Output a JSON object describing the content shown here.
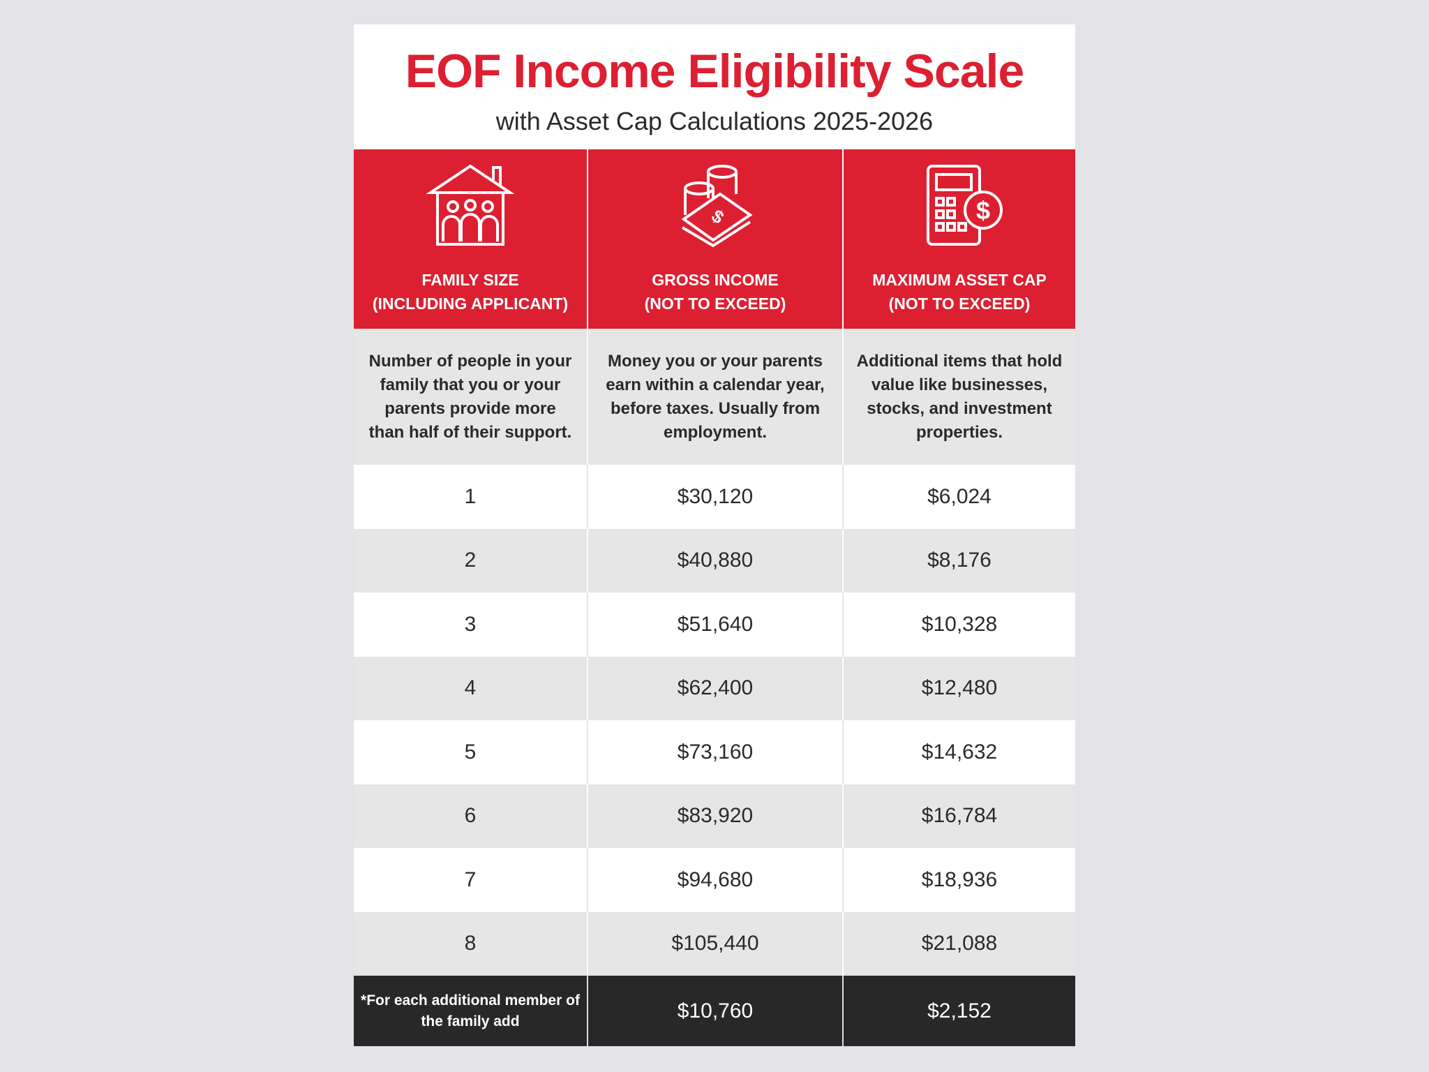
{
  "title": "EOF Income Eligibility Scale",
  "subtitle": "with Asset Cap Calculations 2025-2026",
  "columns": [
    {
      "icon": "house-family-icon",
      "heading1": "FAMILY SIZE",
      "heading2": "(INCLUDING APPLICANT)",
      "description": "Number of people in your family that you or your parents provide more than half of their support."
    },
    {
      "icon": "money-coins-icon",
      "heading1": "GROSS INCOME",
      "heading2": "(NOT TO EXCEED)",
      "description": "Money you or your parents earn within a calendar year, before taxes. Usually from employment."
    },
    {
      "icon": "calculator-dollar-icon",
      "heading1": "MAXIMUM ASSET CAP",
      "heading2": "(NOT TO EXCEED)",
      "description": "Additional items that hold value like businesses, stocks, and investment properties."
    }
  ],
  "rows": [
    [
      "1",
      "$30,120",
      "$6,024"
    ],
    [
      "2",
      "$40,880",
      "$8,176"
    ],
    [
      "3",
      "$51,640",
      "$10,328"
    ],
    [
      "4",
      "$62,400",
      "$12,480"
    ],
    [
      "5",
      "$73,160",
      "$14,632"
    ],
    [
      "6",
      "$83,920",
      "$16,784"
    ],
    [
      "7",
      "$94,680",
      "$18,936"
    ],
    [
      "8",
      "$105,440",
      "$21,088"
    ]
  ],
  "footer": {
    "note": "*For each additional member of the family add",
    "income": "$10,760",
    "asset": "$2,152"
  },
  "colors": {
    "accent": "#dc2032",
    "dark": "#282828",
    "stripe": "#e6e6e6"
  }
}
